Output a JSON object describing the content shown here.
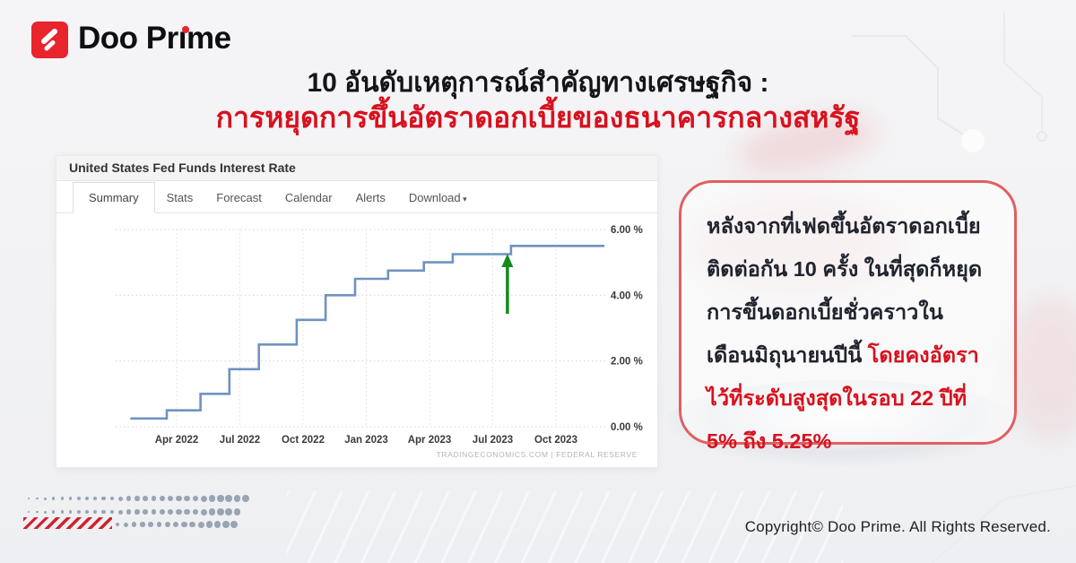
{
  "brand": {
    "name": "Doo Prime"
  },
  "title": {
    "line1": "10 อันดับเหตุการณ์สำคัญทางเศรษฐกิจ :",
    "line2": "การหยุดการขึ้นอัตราดอกเบี้ยของธนาคารกลางสหรัฐ"
  },
  "chart_widget": {
    "header": "United States Fed Funds Interest Rate",
    "tabs": [
      {
        "label": "Summary",
        "active": true,
        "caret": false
      },
      {
        "label": "Stats",
        "active": false,
        "caret": false
      },
      {
        "label": "Forecast",
        "active": false,
        "caret": false
      },
      {
        "label": "Calendar",
        "active": false,
        "caret": false
      },
      {
        "label": "Alerts",
        "active": false,
        "caret": false
      },
      {
        "label": "Download",
        "active": false,
        "caret": true
      }
    ],
    "watermark": "TRADINGECONOMICS.COM | FEDERAL RESERVE"
  },
  "chart_data": {
    "type": "line",
    "line_style": "step",
    "title": "United States Fed Funds Interest Rate",
    "xlabel": "",
    "ylabel": "",
    "unit": "%",
    "ylim": [
      0,
      6
    ],
    "grid": true,
    "legend": false,
    "y_ticks": [
      {
        "label": "6.00 %",
        "value": 6
      },
      {
        "label": "4.00 %",
        "value": 4
      },
      {
        "label": "2.00 %",
        "value": 2
      },
      {
        "label": "0.00 %",
        "value": 0
      }
    ],
    "x_ticks": [
      {
        "label": "Apr 2022",
        "month_index": 3
      },
      {
        "label": "Jul 2022",
        "month_index": 6
      },
      {
        "label": "Oct 2022",
        "month_index": 9
      },
      {
        "label": "Jan 2023",
        "month_index": 12
      },
      {
        "label": "Apr 2023",
        "month_index": 15
      },
      {
        "label": "Jul 2023",
        "month_index": 18
      },
      {
        "label": "Oct 2023",
        "month_index": 21
      }
    ],
    "points": [
      {
        "date": "2022-01-25",
        "rate": 0.25
      },
      {
        "date": "2022-03-17",
        "rate": 0.5
      },
      {
        "date": "2022-05-05",
        "rate": 1.0
      },
      {
        "date": "2022-06-16",
        "rate": 1.75
      },
      {
        "date": "2022-07-28",
        "rate": 2.5
      },
      {
        "date": "2022-09-22",
        "rate": 3.25
      },
      {
        "date": "2022-11-03",
        "rate": 4.0
      },
      {
        "date": "2022-12-15",
        "rate": 4.5
      },
      {
        "date": "2023-02-02",
        "rate": 4.75
      },
      {
        "date": "2023-03-23",
        "rate": 5.0
      },
      {
        "date": "2023-05-04",
        "rate": 5.25
      },
      {
        "date": "2023-07-27",
        "rate": 5.5
      },
      {
        "date": "2023-12-10",
        "rate": 5.5
      }
    ],
    "annotation": {
      "shape": "up-arrow",
      "date": "2023-07-27",
      "color": "#148a1e"
    },
    "line_color": "#6f93c0",
    "source": "TRADINGECONOMICS.COM | FEDERAL RESERVE"
  },
  "info_box": {
    "text_dark": "หลังจากที่เฟดขึ้นอัตราดอกเบี้ยติดต่อกัน 10 ครั้ง ในที่สุดก็หยุดการขึ้นดอกเบี้ยชั่วคราวในเดือนมิถุนายนปีนี้ ",
    "text_red": "โดยคงอัตราไว้ที่ระดับสูงสุดในรอบ 22 ปีที่ 5% ถึง 5.25%"
  },
  "footer": {
    "copyright": "Copyright© Doo Prime. All Rights Reserved."
  },
  "colors": {
    "accent_red": "#d8111e",
    "box_border_red": "#e0605f",
    "logo_red": "#e8242c",
    "line_blue": "#6f93c0",
    "arrow_green": "#148a1e",
    "dot_gray": "#8a97a8"
  }
}
